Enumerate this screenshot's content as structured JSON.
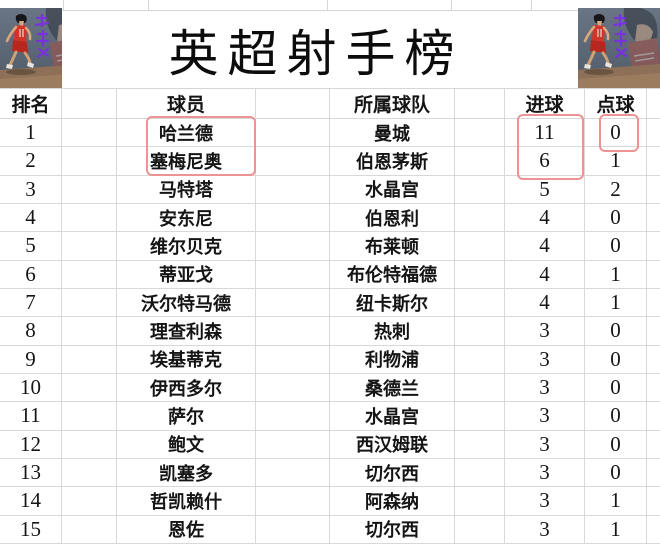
{
  "chart_data": {
    "type": "table",
    "title": "英超射手榜",
    "columns": [
      "排名",
      "球员",
      "所属球队",
      "进球",
      "点球"
    ],
    "column_keys": [
      "rank",
      "player",
      "team",
      "goals",
      "penalties"
    ],
    "rows": [
      [
        1,
        "哈兰德",
        "曼城",
        11,
        0
      ],
      [
        2,
        "塞梅尼奥",
        "伯恩茅斯",
        6,
        1
      ],
      [
        3,
        "马特塔",
        "水晶宫",
        5,
        2
      ],
      [
        4,
        "安东尼",
        "伯恩利",
        4,
        0
      ],
      [
        5,
        "维尔贝克",
        "布莱顿",
        4,
        0
      ],
      [
        6,
        "蒂亚戈",
        "布伦特福德",
        4,
        1
      ],
      [
        7,
        "沃尔特马德",
        "纽卡斯尔",
        4,
        1
      ],
      [
        8,
        "理查利森",
        "热刺",
        3,
        0
      ],
      [
        9,
        "埃基蒂克",
        "利物浦",
        3,
        0
      ],
      [
        10,
        "伊西多尔",
        "桑德兰",
        3,
        0
      ],
      [
        11,
        "萨尔",
        "水晶宫",
        3,
        0
      ],
      [
        12,
        "鲍文",
        "西汉姆联",
        3,
        0
      ],
      [
        13,
        "凯塞多",
        "切尔西",
        3,
        0
      ],
      [
        14,
        "哲凯赖什",
        "阿森纳",
        3,
        1
      ],
      [
        15,
        "恩佐",
        "切尔西",
        3,
        1
      ]
    ],
    "annotations": [
      {
        "name": "highlight-box-players",
        "cells": [
          "哈兰德",
          "塞梅尼奥"
        ]
      },
      {
        "name": "highlight-box-goals",
        "cells": [
          11,
          6
        ]
      },
      {
        "name": "highlight-box-penalty",
        "cells": [
          0
        ]
      }
    ],
    "layout_hints": {
      "grid": "on",
      "header_row": true
    }
  },
  "colors": {
    "background": "#ffffff",
    "gridline": "#d6d6d6",
    "text": "#151515",
    "highlight_box": "#ec9393",
    "watermark_purple": "#7b2de8",
    "jersey_red": "#d1342a"
  },
  "corner_images": {
    "left": "basketball-player-artwork",
    "right": "basketball-player-artwork"
  }
}
